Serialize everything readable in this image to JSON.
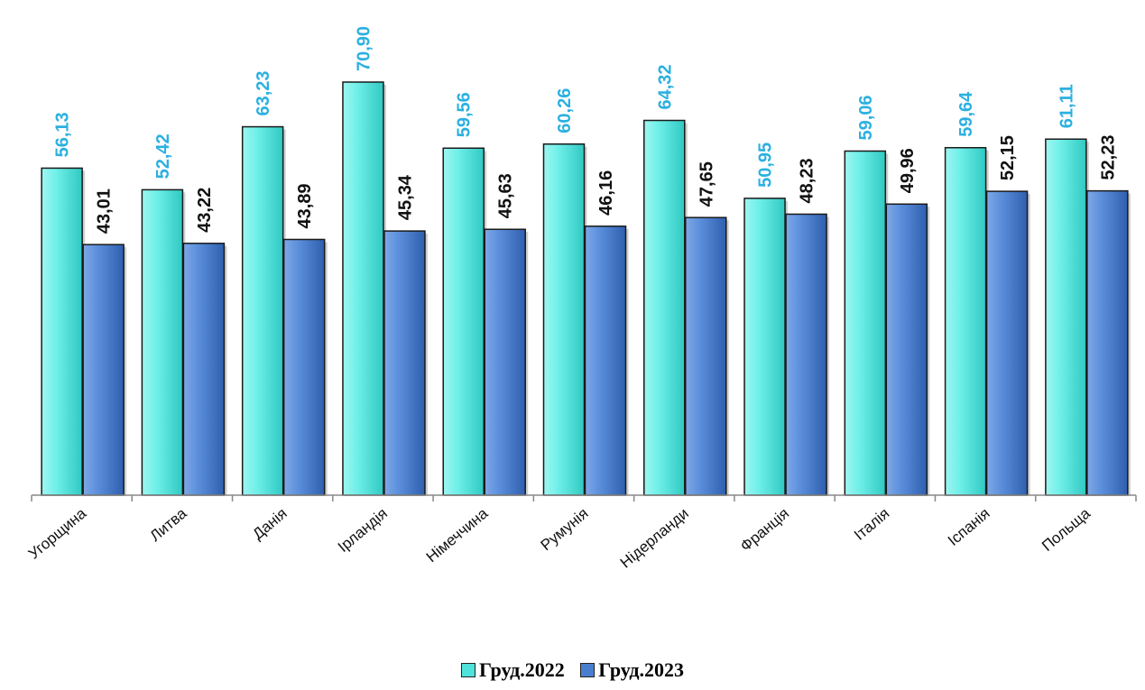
{
  "chart_data": {
    "type": "bar",
    "categories": [
      "Угорщина",
      "Литва",
      "Данія",
      "Ірландія",
      "Німеччина",
      "Румунія",
      "Нідерланди",
      "Франція",
      "Італія",
      "Іспанія",
      "Польща"
    ],
    "series": [
      {
        "name": "Груд.2022",
        "values": [
          56.13,
          52.42,
          63.23,
          70.9,
          59.56,
          60.26,
          64.32,
          50.95,
          59.06,
          59.64,
          61.11
        ],
        "labels": [
          "56,13",
          "52,42",
          "63,23",
          "70,90",
          "59,56",
          "60,26",
          "64,32",
          "50,95",
          "59,06",
          "59,64",
          "61,11"
        ],
        "color": "#4fe3dc",
        "label_color": "#2bb0e0"
      },
      {
        "name": "Груд.2023",
        "values": [
          43.01,
          43.22,
          43.89,
          45.34,
          45.63,
          46.16,
          47.65,
          48.23,
          49.96,
          52.15,
          52.23
        ],
        "labels": [
          "43,01",
          "43,22",
          "43,89",
          "45,34",
          "45,63",
          "46,16",
          "47,65",
          "48,23",
          "49,96",
          "52,15",
          "52,23"
        ],
        "color": "#4a7fcf",
        "label_color": "#111111"
      }
    ],
    "ylim": [
      0,
      72
    ],
    "grid": false,
    "legend_position": "bottom"
  }
}
